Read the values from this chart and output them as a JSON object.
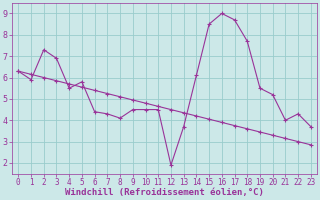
{
  "x": [
    0,
    1,
    2,
    3,
    4,
    5,
    6,
    7,
    8,
    9,
    10,
    11,
    12,
    13,
    14,
    15,
    16,
    17,
    18,
    19,
    20,
    21,
    22,
    23
  ],
  "line_data": [
    6.3,
    5.9,
    7.3,
    6.9,
    5.5,
    5.8,
    4.4,
    4.3,
    4.1,
    4.5,
    4.5,
    4.5,
    1.9,
    3.7,
    6.1,
    8.5,
    9.0,
    8.7,
    7.7,
    5.5,
    5.2,
    4.0,
    4.3,
    3.7
  ],
  "line_trend": [
    6.3,
    6.15,
    6.0,
    5.85,
    5.7,
    5.55,
    5.4,
    5.25,
    5.1,
    4.95,
    4.8,
    4.65,
    4.5,
    4.35,
    4.2,
    4.05,
    3.9,
    3.75,
    3.6,
    3.45,
    3.3,
    3.15,
    3.0,
    2.85
  ],
  "background": "#cce8e8",
  "line_color": "#993399",
  "grid_color": "#99cccc",
  "xlim": [
    -0.5,
    23.5
  ],
  "ylim": [
    1.5,
    9.5
  ],
  "yticks": [
    2,
    3,
    4,
    5,
    6,
    7,
    8,
    9
  ],
  "xticks": [
    0,
    1,
    2,
    3,
    4,
    5,
    6,
    7,
    8,
    9,
    10,
    11,
    12,
    13,
    14,
    15,
    16,
    17,
    18,
    19,
    20,
    21,
    22,
    23
  ],
  "xtick_labels": [
    "0",
    "1",
    "2",
    "3",
    "4",
    "5",
    "6",
    "7",
    "8",
    "9",
    "10",
    "11",
    "12",
    "13",
    "14",
    "15",
    "16",
    "17",
    "18",
    "19",
    "20",
    "21",
    "22",
    "23"
  ],
  "xlabel": "Windchill (Refroidissement éolien,°C)",
  "line_color2": "#993399",
  "figsize": [
    3.2,
    2.0
  ],
  "dpi": 100
}
